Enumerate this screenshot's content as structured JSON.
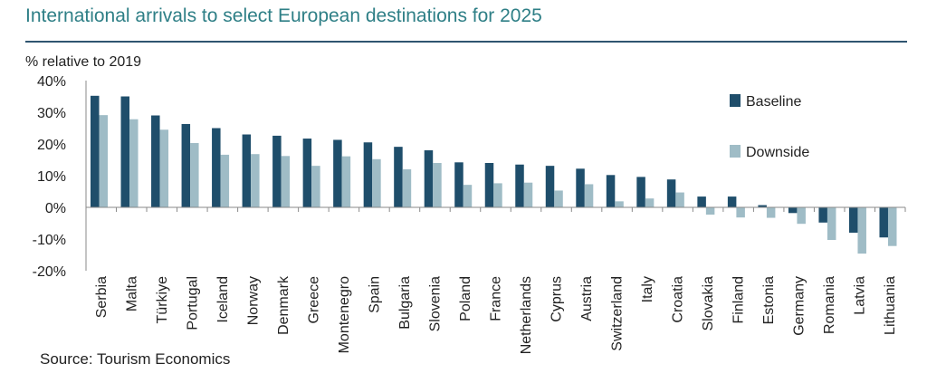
{
  "title": "International arrivals to select European destinations for 2025",
  "source": "Source: Tourism Economics",
  "colors": {
    "baseline": "#1f4e6b",
    "downside": "#9fbcc6",
    "title": "#2e7f86",
    "rule": "#2f5570"
  },
  "chart_data": {
    "type": "bar",
    "ylabel": "% relative to 2019",
    "xlabel": "",
    "ylim": [
      -20,
      40
    ],
    "yticks": [
      40,
      30,
      20,
      10,
      0,
      -10,
      -20
    ],
    "ytick_labels": [
      "40%",
      "30%",
      "20%",
      "10%",
      "0%",
      "-10%",
      "-20%"
    ],
    "legend_position": "top-right",
    "grid": false,
    "categories": [
      "Serbia",
      "Malta",
      "Türkiye",
      "Portugal",
      "Iceland",
      "Norway",
      "Denmark",
      "Greece",
      "Montenegro",
      "Spain",
      "Bulgaria",
      "Slovenia",
      "Poland",
      "France",
      "Netherlands",
      "Cyprus",
      "Austria",
      "Switzerland",
      "Italy",
      "Croatia",
      "Slovakia",
      "Finland",
      "Estonia",
      "Germany",
      "Romania",
      "Latvia",
      "Lithuania"
    ],
    "series": [
      {
        "name": "Baseline",
        "values": [
          35.2,
          35,
          29,
          26.3,
          25,
          23,
          22.6,
          21.7,
          21.3,
          20.5,
          19.1,
          18,
          14.2,
          14,
          13.5,
          13.1,
          12.2,
          10.2,
          9.6,
          8.8,
          3.4,
          3.4,
          0.7,
          -1.8,
          -4.8,
          -8,
          -9.5
        ]
      },
      {
        "name": "Downside",
        "values": [
          29.1,
          27.8,
          24.5,
          20.3,
          16.6,
          16.8,
          16.2,
          13.1,
          16.1,
          15.2,
          12,
          14,
          7.1,
          7.6,
          7.8,
          5.3,
          7.3,
          1.9,
          2.8,
          4.7,
          -2.3,
          -3.2,
          -3.3,
          -5.2,
          -10.3,
          -14.6,
          -12.2
        ]
      }
    ]
  }
}
